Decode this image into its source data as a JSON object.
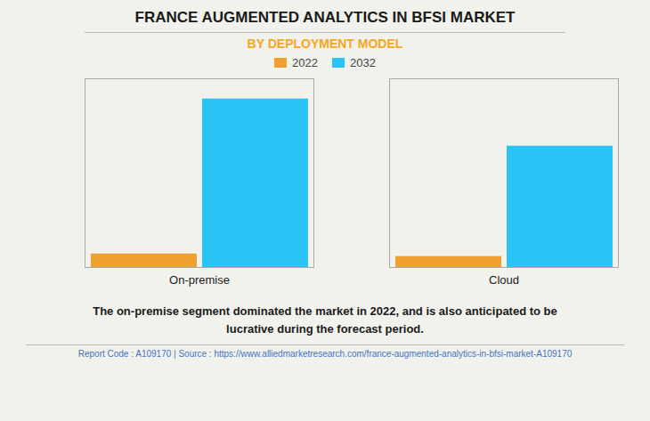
{
  "chart_data": {
    "type": "bar",
    "title": "FRANCE AUGMENTED ANALYTICS IN BFSI MARKET",
    "subtitle": "BY DEPLOYMENT MODEL",
    "categories": [
      "On-premise",
      "Cloud"
    ],
    "series": [
      {
        "name": "2022",
        "color": "#F0A030",
        "values": [
          0.08,
          0.065
        ]
      },
      {
        "name": "2032",
        "color": "#29C4F5",
        "values": [
          1.0,
          0.72
        ]
      }
    ],
    "ylim": [
      0,
      1.12
    ],
    "tick_labels": "x",
    "legend": "top",
    "annotations": [
      "The on-premise segment dominated the market in 2022, and is also anticipated to be\nlucrative during the forecast period.",
      "Report Code : A109170  |  Source : https://www.alliedmarketresearch.com/france-augmented-analytics-in-bfsi-market-A109170"
    ]
  }
}
